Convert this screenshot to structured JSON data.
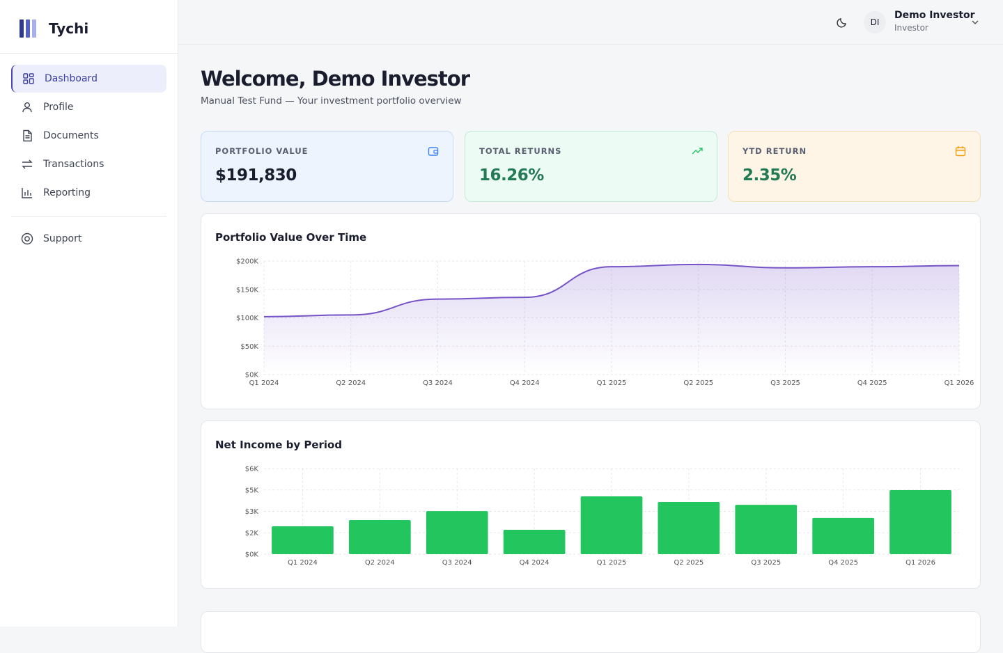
{
  "sidebar": {
    "brand": "Tychi",
    "nav": [
      {
        "label": "Dashboard",
        "active": true
      },
      {
        "label": "Profile"
      },
      {
        "label": "Documents"
      },
      {
        "label": "Transactions"
      },
      {
        "label": "Reporting"
      }
    ],
    "support": "Support"
  },
  "header": {
    "avatar": "DI",
    "user_name": "Demo Investor",
    "user_role": "Investor"
  },
  "page": {
    "title": "Welcome, Demo Investor",
    "subtitle": "Manual Test Fund — Your investment portfolio overview"
  },
  "cards": [
    {
      "label": "PORTFOLIO VALUE",
      "value": "$191,830"
    },
    {
      "label": "TOTAL RETURNS",
      "value": "16.26%"
    },
    {
      "label": "YTD RETURN",
      "value": "2.35%"
    }
  ],
  "chart_data": [
    {
      "type": "line",
      "title": "Portfolio Value Over Time",
      "categories": [
        "Q1 2024",
        "Q2 2024",
        "Q3 2024",
        "Q4 2024",
        "Q1 2025",
        "Q2 2025",
        "Q3 2025",
        "Q4 2025",
        "Q1 2026"
      ],
      "values": [
        102000,
        105000,
        133000,
        136000,
        190000,
        194000,
        188000,
        190000,
        192000
      ],
      "color": "#7552c8",
      "ylim": [
        0,
        200000
      ],
      "yticks": [
        {
          "value": 0,
          "label": "$0K"
        },
        {
          "value": 50000,
          "label": "$50K"
        },
        {
          "value": 100000,
          "label": "$100K"
        },
        {
          "value": 150000,
          "label": "$150K"
        },
        {
          "value": 200000,
          "label": "$200K"
        }
      ],
      "grid": true
    },
    {
      "type": "bar",
      "title": "Net Income by Period",
      "categories": [
        "Q1 2024",
        "Q2 2024",
        "Q3 2024",
        "Q4 2024",
        "Q1 2025",
        "Q2 2025",
        "Q3 2025",
        "Q4 2025",
        "Q1 2026"
      ],
      "values": [
        1950,
        2390,
        3020,
        1710,
        4050,
        3660,
        3460,
        2540,
        4490
      ],
      "color": "#22c55e",
      "ylim": [
        0,
        6000
      ],
      "yticks": [
        {
          "value": 0,
          "label": "$0K"
        },
        {
          "value": 1500,
          "label": "$2K"
        },
        {
          "value": 3000,
          "label": "$3K"
        },
        {
          "value": 4500,
          "label": "$5K"
        },
        {
          "value": 6000,
          "label": "$6K"
        }
      ],
      "grid": true
    }
  ]
}
